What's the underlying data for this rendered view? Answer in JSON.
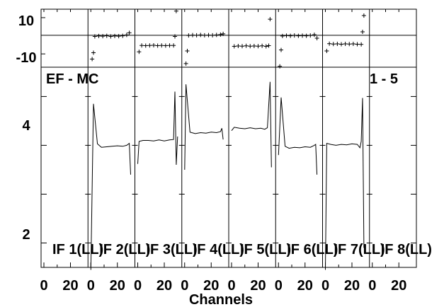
{
  "chart_data": {
    "type": "line",
    "title_left": "EF - MC",
    "title_right": "1 - 5",
    "xlabel": "Channels",
    "x_tick_labels": [
      "0",
      "20"
    ],
    "residual_panel": {
      "y_tick_labels": [
        "10",
        "-10"
      ],
      "ylim": [
        -15,
        17
      ]
    },
    "main_panel": {
      "y_tick_labels": [
        "4",
        "2"
      ],
      "ylim": [
        1.5,
        5.6
      ]
    },
    "panels": [
      {
        "label": "IF 1(LL)",
        "has_data": false,
        "points": [],
        "residuals": []
      },
      {
        "label": "IF 2(LL)",
        "has_data": true,
        "points": [
          [
            0,
            1.45
          ],
          [
            2,
            4.85
          ],
          [
            5,
            4.03
          ],
          [
            8,
            3.96
          ],
          [
            12,
            3.97
          ],
          [
            16,
            3.98
          ],
          [
            20,
            3.99
          ],
          [
            24,
            3.98
          ],
          [
            27,
            4.0
          ],
          [
            29,
            4.04
          ],
          [
            30,
            3.4
          ]
        ],
        "residuals": [
          [
            1,
            -10.5
          ],
          [
            2,
            -7
          ],
          [
            3,
            2
          ],
          [
            6,
            2.2
          ],
          [
            9,
            2.1
          ],
          [
            12,
            2.3
          ],
          [
            15,
            2.0
          ],
          [
            18,
            2.2
          ],
          [
            21,
            2.1
          ],
          [
            24,
            2.3
          ],
          [
            27,
            2.8
          ],
          [
            29,
            4.0
          ]
        ]
      },
      {
        "label": "IF 3(LL)",
        "has_data": true,
        "points": [
          [
            0,
            3.62
          ],
          [
            1,
            4.08
          ],
          [
            4,
            4.1
          ],
          [
            8,
            4.1
          ],
          [
            12,
            4.09
          ],
          [
            16,
            4.11
          ],
          [
            20,
            4.09
          ],
          [
            24,
            4.11
          ],
          [
            27,
            4.12
          ],
          [
            28,
            5.1
          ],
          [
            29,
            3.6
          ],
          [
            30,
            4.18
          ]
        ],
        "residuals": [
          [
            1,
            -6.5
          ],
          [
            3,
            -3
          ],
          [
            6,
            -3.1
          ],
          [
            9,
            -3
          ],
          [
            12,
            -2.9
          ],
          [
            15,
            -3.1
          ],
          [
            18,
            -3
          ],
          [
            21,
            -3.1
          ],
          [
            24,
            -3
          ],
          [
            27,
            -3
          ],
          [
            28,
            2
          ],
          [
            29,
            16
          ]
        ]
      },
      {
        "label": "IF 4(LL)",
        "has_data": true,
        "points": [
          [
            0,
            3.5
          ],
          [
            1,
            5.25
          ],
          [
            4,
            4.27
          ],
          [
            8,
            4.24
          ],
          [
            12,
            4.26
          ],
          [
            16,
            4.25
          ],
          [
            20,
            4.27
          ],
          [
            24,
            4.26
          ],
          [
            27,
            4.28
          ],
          [
            28,
            4.35
          ],
          [
            29,
            4.12
          ]
        ],
        "residuals": [
          [
            1,
            -13
          ],
          [
            2,
            -6
          ],
          [
            3,
            2.5
          ],
          [
            6,
            2.7
          ],
          [
            9,
            2.6
          ],
          [
            12,
            2.8
          ],
          [
            15,
            2.6
          ],
          [
            18,
            2.7
          ],
          [
            21,
            2.6
          ],
          [
            24,
            2.8
          ],
          [
            27,
            3.0
          ],
          [
            29,
            3.4
          ]
        ]
      },
      {
        "label": "IF 5(LL)",
        "has_data": true,
        "points": [
          [
            0,
            4.3
          ],
          [
            2,
            4.37
          ],
          [
            6,
            4.35
          ],
          [
            10,
            4.34
          ],
          [
            14,
            4.36
          ],
          [
            18,
            4.34
          ],
          [
            22,
            4.35
          ],
          [
            25,
            4.33
          ],
          [
            27,
            4.36
          ],
          [
            29,
            5.3
          ],
          [
            30,
            3.55
          ]
        ],
        "residuals": [
          [
            2,
            -3.5
          ],
          [
            5,
            -3.3
          ],
          [
            8,
            -3.4
          ],
          [
            11,
            -3.2
          ],
          [
            14,
            -3.4
          ],
          [
            17,
            -3.3
          ],
          [
            20,
            -3.4
          ],
          [
            23,
            -3.2
          ],
          [
            26,
            -3.5
          ],
          [
            28,
            -3.1
          ],
          [
            29,
            11.5
          ]
        ]
      },
      {
        "label": "IF 6(LL)",
        "has_data": true,
        "points": [
          [
            0,
            3.8
          ],
          [
            2,
            4.98
          ],
          [
            5,
            3.98
          ],
          [
            8,
            3.94
          ],
          [
            12,
            3.96
          ],
          [
            16,
            3.95
          ],
          [
            20,
            3.97
          ],
          [
            24,
            3.96
          ],
          [
            27,
            4.0
          ],
          [
            28,
            4.02
          ],
          [
            29,
            3.4
          ]
        ],
        "residuals": [
          [
            1,
            -14.5
          ],
          [
            2,
            -5.5
          ],
          [
            3,
            2.2
          ],
          [
            6,
            2.4
          ],
          [
            9,
            2.3
          ],
          [
            12,
            2.5
          ],
          [
            15,
            2.3
          ],
          [
            18,
            2.4
          ],
          [
            21,
            2.3
          ],
          [
            24,
            2.5
          ],
          [
            27,
            2.9
          ],
          [
            29,
            1.0
          ]
        ]
      },
      {
        "label": "IF 7(LL)",
        "has_data": true,
        "points": [
          [
            0,
            1.45
          ],
          [
            1,
            4.04
          ],
          [
            4,
            4.02
          ],
          [
            8,
            4.0
          ],
          [
            12,
            4.02
          ],
          [
            16,
            4.01
          ],
          [
            20,
            4.03
          ],
          [
            24,
            4.02
          ],
          [
            26,
            3.95
          ],
          [
            27,
            4.08
          ],
          [
            28,
            4.97
          ],
          [
            29,
            1.9
          ]
        ],
        "residuals": [
          [
            1,
            -6
          ],
          [
            3,
            -2
          ],
          [
            6,
            -2.2
          ],
          [
            9,
            -2.1
          ],
          [
            12,
            -2.3
          ],
          [
            15,
            -2.1
          ],
          [
            18,
            -2.2
          ],
          [
            21,
            -2.1
          ],
          [
            24,
            -2.3
          ],
          [
            27,
            -2.4
          ],
          [
            28,
            4.5
          ],
          [
            29,
            13.5
          ]
        ]
      },
      {
        "label": "IF 8(LL)",
        "has_data": false,
        "points": [],
        "residuals": []
      }
    ]
  }
}
